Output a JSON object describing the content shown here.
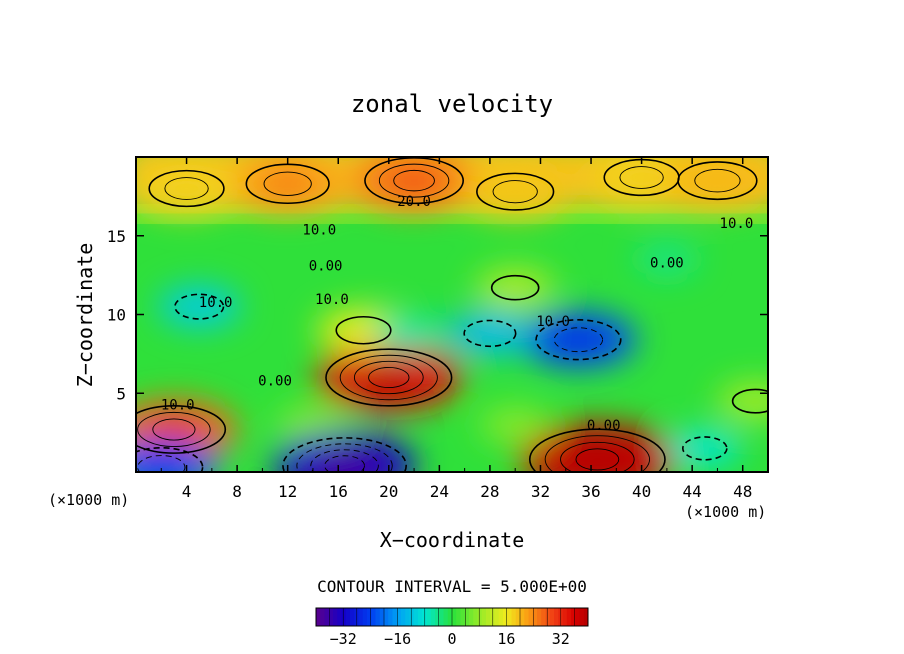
{
  "chart_data": {
    "type": "heatmap",
    "title": "zonal velocity",
    "xlabel": "X−coordinate",
    "ylabel": "Z−coordinate",
    "x_unit": "(×1000 m)",
    "y_unit": "(×1000 m)",
    "xlim": [
      0,
      50
    ],
    "ylim": [
      0,
      20
    ],
    "x_ticks": [
      4,
      8,
      12,
      16,
      20,
      24,
      28,
      32,
      36,
      40,
      44,
      48
    ],
    "x_tick_labels": [
      "4",
      "8",
      "12",
      "16",
      "20",
      "24",
      "28",
      "32",
      "36",
      "40",
      "44",
      "48"
    ],
    "y_ticks": [
      5,
      10,
      15
    ],
    "y_tick_labels": [
      "5",
      "10",
      "15"
    ],
    "contour_interval_text": "CONTOUR INTERVAL = 5.000E+00",
    "contour_labels": [
      {
        "text": "20.0",
        "x": 22,
        "z": 17.2
      },
      {
        "text": "10.0",
        "x": 14.5,
        "z": 15.4
      },
      {
        "text": "10.0",
        "x": 47.5,
        "z": 15.8
      },
      {
        "text": "0.00",
        "x": 15,
        "z": 13.1
      },
      {
        "text": "0.00",
        "x": 42,
        "z": 13.3
      },
      {
        "text": "10.0",
        "x": 6.3,
        "z": 10.8
      },
      {
        "text": "10.0",
        "x": 15.5,
        "z": 11
      },
      {
        "text": "10.0",
        "x": 33,
        "z": 9.6
      },
      {
        "text": "0.00",
        "x": 11,
        "z": 5.8
      },
      {
        "text": "0.00",
        "x": 37,
        "z": 3
      },
      {
        "text": "10.0",
        "x": 3.3,
        "z": 4.3
      }
    ],
    "features": [
      {
        "x": 22,
        "z": 18.5,
        "value": 25
      },
      {
        "x": 12,
        "z": 18.3,
        "value": 22
      },
      {
        "x": 4,
        "z": 18,
        "value": 18
      },
      {
        "x": 40,
        "z": 18.7,
        "value": 18
      },
      {
        "x": 46,
        "z": 18.5,
        "value": 20
      },
      {
        "x": 30,
        "z": 17.8,
        "value": 19
      },
      {
        "x": 3,
        "z": 2.7,
        "value": 27
      },
      {
        "x": 20,
        "z": 6,
        "value": 34
      },
      {
        "x": 18,
        "z": 9,
        "value": 15
      },
      {
        "x": 30,
        "z": 11.7,
        "value": 10
      },
      {
        "x": 36.5,
        "z": 0.8,
        "value": 38
      },
      {
        "x": 14,
        "z": 3,
        "value": 7
      },
      {
        "x": 16.5,
        "z": 0.4,
        "value": -33
      },
      {
        "x": 2,
        "z": 0.3,
        "value": -22
      },
      {
        "x": 5,
        "z": 10.5,
        "value": -11
      },
      {
        "x": 35,
        "z": 8.4,
        "value": -23
      },
      {
        "x": 28,
        "z": 8.8,
        "value": -13
      },
      {
        "x": 21.5,
        "z": 8.8,
        "value": -6
      },
      {
        "x": 45,
        "z": 1.5,
        "value": -8
      },
      {
        "x": 42,
        "z": 13.5,
        "value": -4
      },
      {
        "x": 49,
        "z": 4.5,
        "value": 9
      },
      {
        "x": 30,
        "z": 3,
        "value": 7
      }
    ],
    "colorbar": {
      "min": -40,
      "max": 40,
      "ticks": [
        -32,
        -16,
        0,
        16,
        32
      ],
      "tick_labels": [
        "−32",
        "−16",
        "0",
        "16",
        "32"
      ]
    }
  }
}
